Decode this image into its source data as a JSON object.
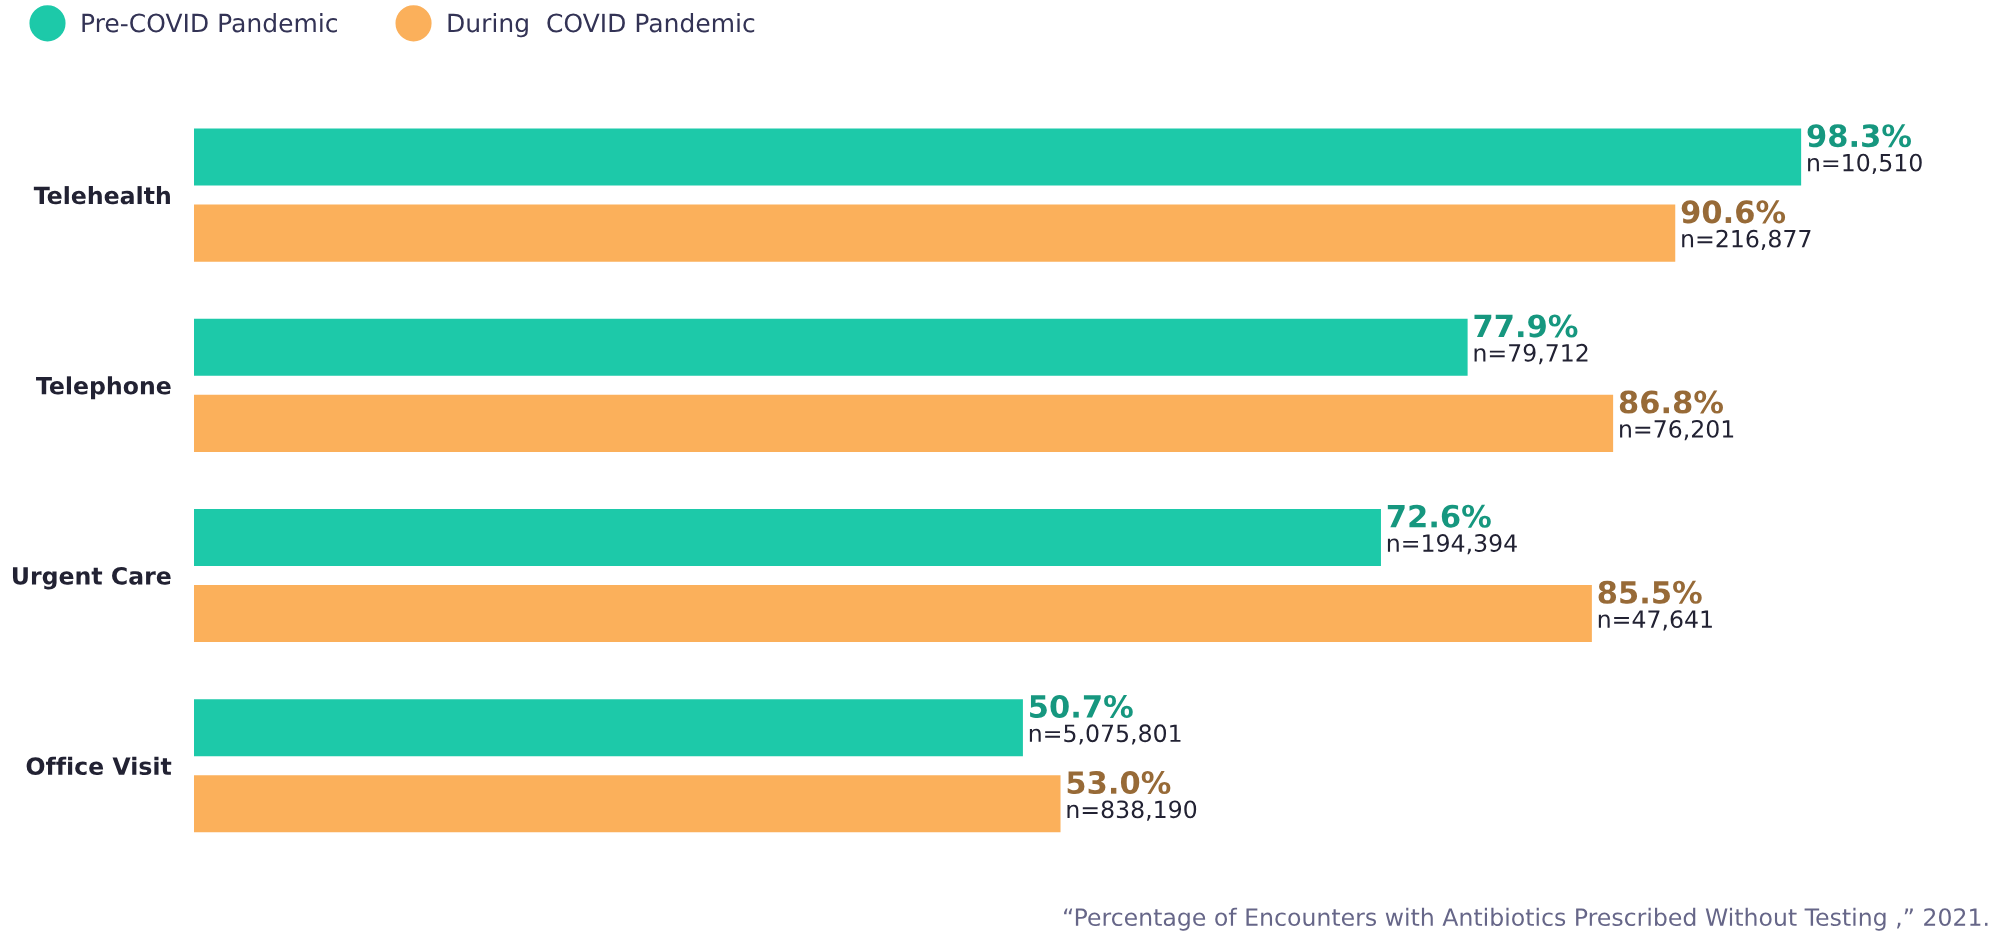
{
  "chart_data": {
    "type": "bar",
    "orientation": "horizontal",
    "categories": [
      "Telehealth",
      "Telephone",
      "Urgent Care",
      "Office Visit"
    ],
    "series": [
      {
        "name": "Pre-COVID Pandemic",
        "color": "#1dc9a9",
        "values": [
          98.3,
          77.9,
          72.6,
          50.7
        ],
        "value_labels": [
          "98.3%\nn=10,510",
          "77.9%\nn=79,712",
          "72.6%\nn=194,394",
          "50.7%\nn=5,075,801"
        ]
      },
      {
        "name": "During  COVID Pandemic",
        "color": "#fbb05b",
        "values": [
          90.6,
          86.8,
          85.5,
          53.0
        ],
        "value_labels": [
          "90.6%\nn=216,877",
          "86.8%\nn=76,201",
          "85.5%\nn=47,641",
          "53.0%\nn=838,190"
        ]
      }
    ],
    "legend": "top left",
    "grid": false,
    "annotations": [
      "“Percentage of Encounters with Antibiotics Prescribed Without Testing ,” 2021."
    ]
  }
}
